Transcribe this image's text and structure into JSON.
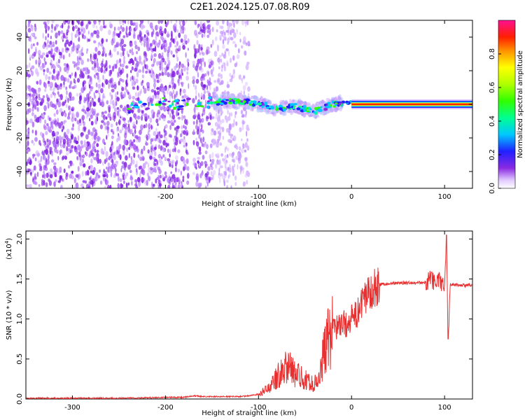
{
  "title": "C2E1.2024.125.07.08.R09",
  "chart_data": [
    {
      "type": "heatmap",
      "xlabel": "Height of straight line (km)",
      "ylabel": "Frequency (Hz)",
      "xlim": [
        -350,
        130
      ],
      "ylim": [
        -50,
        50
      ],
      "xticks": [
        -300,
        -200,
        -100,
        0,
        100
      ],
      "yticks": [
        -40,
        -20,
        0,
        20,
        40
      ],
      "colorbar": {
        "label": "Normalized spectral amplitude",
        "range": [
          0.0,
          1.0
        ],
        "ticks": [
          "0.0",
          "0.2",
          "0.4",
          "0.6",
          "0.8"
        ]
      },
      "features": {
        "noise_region_km": [
          -350,
          -110
        ],
        "gap_km": [
          -175,
          -170
        ],
        "carrier_line_hz": 0,
        "carrier_start_km": -145,
        "strong_carrier_start_km": 0
      },
      "carrier_trace": {
        "x": [
          -240,
          -220,
          -200,
          -185,
          -170,
          -150,
          -130,
          -110,
          -100,
          -90,
          -80,
          -70,
          -60,
          -50,
          -40,
          -30,
          -20,
          -10,
          0,
          50,
          100,
          130
        ],
        "y": [
          -2,
          -1,
          1,
          0,
          1,
          1,
          2,
          1,
          0,
          -1,
          -3,
          -2,
          -1,
          -3,
          -4,
          -2,
          0,
          1,
          0,
          0,
          0,
          0
        ]
      },
      "grid": false
    },
    {
      "type": "line",
      "xlabel": "Height of straight line (km)",
      "ylabel": "SNR (10 * v/v)",
      "scale_label": "(x10",
      "scale_exponent": "4",
      "scale_suffix": ")",
      "xlim": [
        -350,
        130
      ],
      "ylim": [
        0.0,
        2.1
      ],
      "xticks": [
        -300,
        -200,
        -100,
        0,
        100
      ],
      "yticks": [
        "0.0",
        "0.5",
        "1.0",
        "1.5",
        "2.0"
      ],
      "color": "#e83030",
      "series": [
        {
          "x": [
            -350,
            -300,
            -250,
            -200,
            -180,
            -170,
            -160,
            -140,
            -120,
            -110,
            -100,
            -90,
            -85,
            -80,
            -75,
            -70,
            -65,
            -60,
            -55,
            -50,
            -45,
            -40,
            -35,
            -30,
            -25,
            -20,
            -15,
            -10,
            -5,
            0,
            5,
            10,
            15,
            20,
            25,
            30,
            35,
            40,
            50,
            60,
            70,
            80,
            85,
            90,
            95,
            100,
            102,
            104,
            106,
            110,
            120,
            130
          ],
          "y": [
            0.01,
            0.01,
            0.01,
            0.02,
            0.02,
            0.04,
            0.03,
            0.03,
            0.03,
            0.04,
            0.06,
            0.12,
            0.2,
            0.28,
            0.35,
            0.42,
            0.38,
            0.3,
            0.28,
            0.25,
            0.2,
            0.18,
            0.3,
            0.55,
            0.75,
            0.85,
            0.92,
            0.95,
            0.93,
            1.0,
            1.05,
            1.15,
            1.28,
            1.36,
            1.4,
            1.43,
            1.44,
            1.44,
            1.45,
            1.45,
            1.45,
            1.46,
            1.5,
            1.45,
            1.48,
            1.42,
            2.05,
            0.75,
            1.44,
            1.43,
            1.42,
            1.42
          ]
        }
      ],
      "grid": false
    }
  ]
}
